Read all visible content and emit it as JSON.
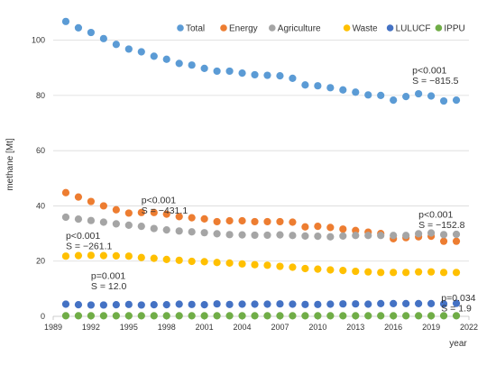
{
  "chart_data": {
    "type": "scatter",
    "xlabel": "year",
    "ylabel": "methane [Mt]",
    "xlim": [
      1989,
      2022
    ],
    "ylim": [
      0,
      110
    ],
    "x_ticks": [
      1989,
      1992,
      1995,
      1998,
      2001,
      2004,
      2007,
      2010,
      2013,
      2016,
      2019,
      2022
    ],
    "y_ticks": [
      0,
      20,
      40,
      60,
      80,
      100
    ],
    "grid": "horizontal",
    "legend_position": "top",
    "x": [
      1990,
      1991,
      1992,
      1993,
      1994,
      1995,
      1996,
      1997,
      1998,
      1999,
      2000,
      2001,
      2002,
      2003,
      2004,
      2005,
      2006,
      2007,
      2008,
      2009,
      2010,
      2011,
      2012,
      2013,
      2014,
      2015,
      2016,
      2017,
      2018,
      2019,
      2020,
      2021
    ],
    "series": [
      {
        "name": "Total",
        "color": "#5b9bd5",
        "values": [
          106.8,
          104.5,
          102.8,
          100.6,
          98.5,
          96.8,
          95.8,
          94.2,
          93.1,
          91.6,
          91.0,
          89.8,
          88.8,
          88.8,
          88.1,
          87.5,
          87.3,
          87.1,
          86.2,
          83.8,
          83.5,
          82.8,
          82.0,
          81.2,
          80.2,
          80.0,
          78.3,
          79.6,
          80.6,
          79.8,
          78.0,
          78.3
        ]
      },
      {
        "name": "Energy",
        "color": "#ed7d31",
        "values": [
          44.8,
          43.2,
          41.6,
          40.0,
          38.6,
          37.4,
          37.6,
          37.6,
          37.0,
          36.1,
          35.7,
          35.3,
          34.3,
          34.6,
          34.6,
          34.3,
          34.3,
          34.3,
          34.1,
          32.4,
          32.6,
          32.2,
          31.6,
          31.1,
          30.5,
          30.0,
          28.1,
          28.5,
          28.8,
          29.0,
          27.2,
          27.2
        ]
      },
      {
        "name": "Agriculture",
        "color": "#a5a5a5",
        "values": [
          35.9,
          35.2,
          34.7,
          34.1,
          33.5,
          33.0,
          32.6,
          31.8,
          31.3,
          30.9,
          30.6,
          30.3,
          29.9,
          29.6,
          29.5,
          29.4,
          29.4,
          29.5,
          29.3,
          29.1,
          29.0,
          28.8,
          29.1,
          29.3,
          29.3,
          29.3,
          29.3,
          29.3,
          29.9,
          30.2,
          29.6,
          29.7
        ]
      },
      {
        "name": "Waste",
        "color": "#ffc000",
        "values": [
          21.8,
          22.0,
          22.1,
          22.0,
          21.9,
          21.8,
          21.3,
          21.0,
          20.6,
          20.3,
          19.9,
          19.8,
          19.5,
          19.3,
          19.0,
          18.7,
          18.5,
          18.1,
          17.8,
          17.3,
          17.1,
          16.8,
          16.6,
          16.3,
          16.1,
          15.9,
          15.9,
          15.9,
          16.1,
          16.1,
          15.9,
          15.9
        ]
      },
      {
        "name": "LULUCF",
        "color": "#4472c4",
        "values": [
          4.4,
          4.2,
          4.1,
          4.1,
          4.2,
          4.3,
          4.1,
          4.2,
          4.2,
          4.4,
          4.3,
          4.2,
          4.5,
          4.3,
          4.4,
          4.4,
          4.4,
          4.5,
          4.4,
          4.3,
          4.3,
          4.4,
          4.5,
          4.5,
          4.4,
          4.6,
          4.6,
          4.6,
          4.6,
          4.6,
          4.5,
          4.7
        ]
      },
      {
        "name": "IPPU",
        "color": "#70ad47",
        "values": [
          0.2,
          0.2,
          0.2,
          0.2,
          0.2,
          0.2,
          0.2,
          0.2,
          0.2,
          0.2,
          0.2,
          0.2,
          0.2,
          0.2,
          0.2,
          0.2,
          0.2,
          0.2,
          0.2,
          0.2,
          0.2,
          0.2,
          0.2,
          0.2,
          0.2,
          0.2,
          0.2,
          0.2,
          0.2,
          0.2,
          0.2,
          0.2
        ]
      }
    ],
    "annotations": [
      {
        "series": "Total",
        "line1": "p<0.001",
        "line2": "S = −815.5",
        "x": 2017.5,
        "y": 88
      },
      {
        "series": "Energy",
        "line1": "p<0.001",
        "line2": "S = −431.1",
        "x": 1996.0,
        "y": 41
      },
      {
        "series": "Agriculture",
        "line1": "p<0.001",
        "line2": "S = −261.1",
        "x": 1990.0,
        "y": 28
      },
      {
        "series": "Energy",
        "line1": "p<0.001",
        "line2": "S = −152.8",
        "x": 2018.0,
        "y": 35.7
      },
      {
        "series": "LULUCF",
        "line1": "p=0.001",
        "line2": "S = 12.0",
        "x": 1992.0,
        "y": 13.6
      },
      {
        "series": "IPPU",
        "line1": "p=0.034",
        "line2": "S = 1.9",
        "x": 2019.8,
        "y": 5.6
      }
    ]
  }
}
